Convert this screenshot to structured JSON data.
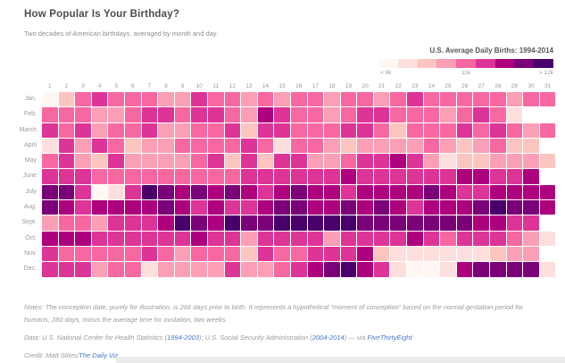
{
  "legend": {
    "title": "U.S. Average Daily Births: 1994-2014",
    "min_label": "< 9k",
    "mid_label": "11k",
    "max_label": "> 12k"
  },
  "chart_data": {
    "type": "heatmap",
    "title": "How Popular Is Your Birthday?",
    "subtitle": "Two decades of American birthdays, averaged by month and day.",
    "x_labels": [
      "1",
      "2",
      "3",
      "4",
      "5",
      "6",
      "7",
      "8",
      "9",
      "10",
      "11",
      "12",
      "13",
      "14",
      "15",
      "16",
      "17",
      "18",
      "19",
      "20",
      "21",
      "22",
      "23",
      "24",
      "25",
      "26",
      "27",
      "28",
      "29",
      "30",
      "31"
    ],
    "y_labels": [
      "Jan.",
      "Feb.",
      "March",
      "April",
      "May",
      "June",
      "July",
      "Aug.",
      "Sept.",
      "Oct.",
      "Nov.",
      "Dec."
    ],
    "palette": [
      "#fff7f3",
      "#fde0dd",
      "#fcc5c0",
      "#fa9fb5",
      "#f768a1",
      "#dd3497",
      "#ae017e",
      "#7a0177",
      "#49006a"
    ],
    "value_scale": "bucket 0-8 of average daily births: 0 = < 9k (lightest), 4 = ~11k, 8 = > 12k (darkest); null = day does not exist",
    "legend": {
      "title": "U.S. Average Daily Births: 1994-2014",
      "labels": [
        "< 9k",
        "11k",
        "> 12k"
      ],
      "position": "top-right"
    },
    "rows": [
      {
        "month": "Jan.",
        "values": [
          0,
          2,
          4,
          5,
          4,
          4,
          4,
          3,
          3,
          5,
          4,
          4,
          3,
          4,
          3,
          4,
          4,
          3,
          4,
          4,
          3,
          4,
          5,
          4,
          4,
          4,
          4,
          4,
          3,
          4,
          4
        ]
      },
      {
        "month": "Feb.",
        "values": [
          4,
          4,
          4,
          3,
          3,
          4,
          5,
          5,
          4,
          5,
          5,
          4,
          3,
          6,
          5,
          4,
          4,
          3,
          4,
          5,
          5,
          4,
          4,
          4,
          3,
          4,
          5,
          4,
          1,
          null,
          null
        ]
      },
      {
        "month": "March",
        "values": [
          5,
          4,
          5,
          3,
          4,
          4,
          5,
          3,
          3,
          4,
          4,
          5,
          2,
          5,
          5,
          4,
          4,
          4,
          5,
          5,
          4,
          2,
          4,
          4,
          4,
          5,
          4,
          5,
          4,
          3,
          4
        ]
      },
      {
        "month": "April",
        "values": [
          1,
          5,
          3,
          5,
          4,
          2,
          3,
          3,
          4,
          4,
          4,
          4,
          5,
          4,
          1,
          4,
          4,
          3,
          2,
          3,
          3,
          3,
          3,
          4,
          3,
          2,
          3,
          4,
          2,
          2,
          null
        ]
      },
      {
        "month": "May",
        "values": [
          4,
          5,
          3,
          2,
          5,
          3,
          3,
          3,
          3,
          4,
          5,
          2,
          5,
          2,
          5,
          5,
          3,
          3,
          4,
          5,
          5,
          6,
          5,
          3,
          1,
          2,
          2,
          3,
          3,
          3,
          2
        ]
      },
      {
        "month": "June",
        "values": [
          5,
          5,
          5,
          4,
          4,
          4,
          4,
          4,
          4,
          4,
          4,
          4,
          5,
          5,
          5,
          5,
          5,
          5,
          6,
          5,
          5,
          5,
          5,
          5,
          5,
          6,
          6,
          5,
          5,
          6,
          null
        ]
      },
      {
        "month": "July",
        "values": [
          7,
          7,
          5,
          0,
          1,
          5,
          8,
          7,
          6,
          7,
          6,
          7,
          6,
          5,
          6,
          7,
          6,
          6,
          5,
          6,
          6,
          6,
          6,
          7,
          6,
          5,
          5,
          6,
          6,
          6,
          6
        ]
      },
      {
        "month": "Aug.",
        "values": [
          7,
          6,
          5,
          6,
          6,
          6,
          6,
          7,
          6,
          5,
          6,
          5,
          5,
          6,
          7,
          7,
          6,
          6,
          7,
          6,
          7,
          6,
          5,
          6,
          6,
          6,
          7,
          8,
          7,
          7,
          6
        ]
      },
      {
        "month": "Sept.",
        "values": [
          3,
          4,
          4,
          3,
          5,
          5,
          5,
          6,
          8,
          7,
          6,
          8,
          7,
          7,
          8,
          8,
          8,
          8,
          8,
          7,
          7,
          7,
          7,
          7,
          7,
          7,
          6,
          6,
          5,
          5,
          null
        ]
      },
      {
        "month": "Oct.",
        "values": [
          6,
          6,
          6,
          5,
          5,
          5,
          5,
          5,
          5,
          6,
          5,
          5,
          3,
          5,
          5,
          5,
          5,
          3,
          5,
          5,
          5,
          5,
          6,
          5,
          4,
          5,
          5,
          5,
          4,
          3,
          1
        ]
      },
      {
        "month": "Nov.",
        "values": [
          5,
          4,
          4,
          4,
          4,
          4,
          5,
          4,
          3,
          4,
          4,
          4,
          2,
          5,
          4,
          4,
          5,
          5,
          5,
          6,
          2,
          1,
          1,
          1,
          1,
          1,
          1,
          2,
          3,
          3,
          null
        ]
      },
      {
        "month": "Dec.",
        "values": [
          5,
          5,
          5,
          3,
          4,
          4,
          1,
          3,
          3,
          3,
          3,
          5,
          3,
          3,
          4,
          5,
          6,
          7,
          8,
          6,
          5,
          1,
          0,
          0,
          1,
          6,
          7,
          7,
          7,
          7,
          1
        ]
      }
    ]
  },
  "footer": {
    "notes": "Notes: The conception date, purely for illustration, is 266 days prior to birth. It represents a hypothetical “moment of conception” based on the normal gestation period for humans, 280 days, minus the average time for ovulation, two weeks.",
    "data_prefix": "Data: U.S. National Center for Health Statistics (",
    "data_link1": "1994-2003",
    "data_mid": "); U.S. Social Security Administration (",
    "data_link2": "2004-2014",
    "data_suffix": ") — via ",
    "data_link3": "FiveThirtyEight",
    "credit_prefix": "Credit: Matt Stiles/",
    "credit_link": "The Daily Viz"
  }
}
